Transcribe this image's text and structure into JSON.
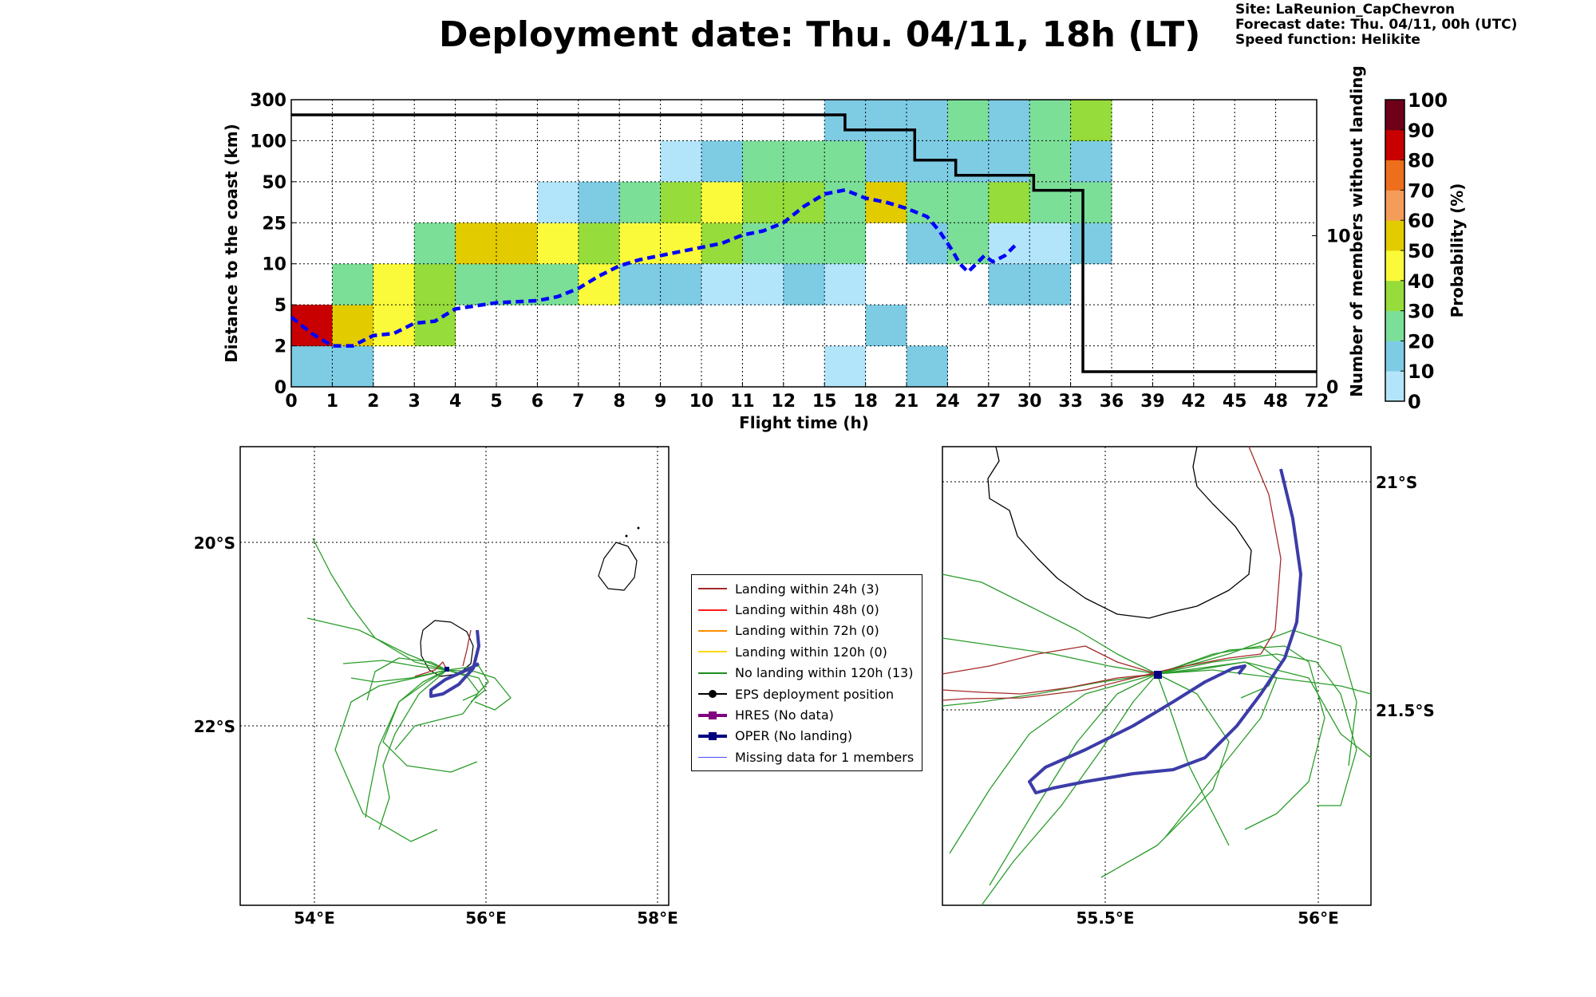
{
  "header": {
    "title": "Deployment date: Thu. 04/11, 18h (LT)",
    "site": "Site: LaReunion_CapChevron",
    "forecast_date": "Forecast date: Thu. 04/11, 00h (UTC)",
    "speed_function": "Speed function: Helikite"
  },
  "chart_data": [
    {
      "type": "heatmap",
      "xlabel": "Flight time (h)",
      "ylabel": "Distance to the coast (km)",
      "y2label": "Number of members without landing",
      "x_ticks": [
        "0",
        "1",
        "2",
        "3",
        "4",
        "5",
        "6",
        "7",
        "8",
        "9",
        "10",
        "11",
        "12",
        "15",
        "18",
        "21",
        "24",
        "27",
        "30",
        "33",
        "36",
        "39",
        "42",
        "45",
        "48",
        "72"
      ],
      "y_ticks": [
        "0",
        "2",
        "5",
        "10",
        "25",
        "50",
        "100",
        "300"
      ],
      "y2_ticks": [
        "0",
        "10"
      ],
      "y2lim": [
        0,
        19
      ],
      "grid": true,
      "colorbar": {
        "label": "Probability (%)",
        "ticks": [
          "0",
          "10",
          "20",
          "30",
          "40",
          "50",
          "60",
          "70",
          "80",
          "90",
          "100"
        ],
        "colors": [
          "#b3e5fa",
          "#7ecbe4",
          "#7bdf98",
          "#96dc3a",
          "#fafa3a",
          "#e2cc00",
          "#f69c5a",
          "#ee6f1b",
          "#c80000",
          "#6e0019"
        ]
      },
      "cells": [
        {
          "c": 0,
          "r": 0,
          "p": 15
        },
        {
          "c": 1,
          "r": 0,
          "p": 15
        },
        {
          "c": 0,
          "r": 1,
          "p": 85
        },
        {
          "c": 1,
          "r": 1,
          "p": 55
        },
        {
          "c": 2,
          "r": 1,
          "p": 45
        },
        {
          "c": 3,
          "r": 1,
          "p": 35
        },
        {
          "c": 1,
          "r": 2,
          "p": 25
        },
        {
          "c": 2,
          "r": 2,
          "p": 45
        },
        {
          "c": 3,
          "r": 2,
          "p": 35
        },
        {
          "c": 4,
          "r": 2,
          "p": 25
        },
        {
          "c": 5,
          "r": 2,
          "p": 25
        },
        {
          "c": 6,
          "r": 2,
          "p": 25
        },
        {
          "c": 7,
          "r": 2,
          "p": 45
        },
        {
          "c": 3,
          "r": 3,
          "p": 25
        },
        {
          "c": 4,
          "r": 3,
          "p": 55
        },
        {
          "c": 5,
          "r": 3,
          "p": 55
        },
        {
          "c": 6,
          "r": 3,
          "p": 45
        },
        {
          "c": 7,
          "r": 3,
          "p": 35
        },
        {
          "c": 8,
          "r": 3,
          "p": 45
        },
        {
          "c": 9,
          "r": 3,
          "p": 45
        },
        {
          "c": 10,
          "r": 3,
          "p": 35
        },
        {
          "c": 11,
          "r": 3,
          "p": 25
        },
        {
          "c": 12,
          "r": 3,
          "p": 25
        },
        {
          "c": 13,
          "r": 3,
          "p": 25
        },
        {
          "c": 15,
          "r": 3,
          "p": 15
        },
        {
          "c": 16,
          "r": 3,
          "p": 25
        },
        {
          "c": 17,
          "r": 3,
          "p": 5
        },
        {
          "c": 18,
          "r": 3,
          "p": 5
        },
        {
          "c": 19,
          "r": 3,
          "p": 15
        },
        {
          "c": 6,
          "r": 4,
          "p": 5
        },
        {
          "c": 7,
          "r": 4,
          "p": 15
        },
        {
          "c": 8,
          "r": 4,
          "p": 25
        },
        {
          "c": 9,
          "r": 4,
          "p": 35
        },
        {
          "c": 10,
          "r": 4,
          "p": 45
        },
        {
          "c": 11,
          "r": 4,
          "p": 35
        },
        {
          "c": 12,
          "r": 4,
          "p": 35
        },
        {
          "c": 13,
          "r": 4,
          "p": 25
        },
        {
          "c": 14,
          "r": 4,
          "p": 55
        },
        {
          "c": 15,
          "r": 4,
          "p": 25
        },
        {
          "c": 16,
          "r": 4,
          "p": 25
        },
        {
          "c": 17,
          "r": 4,
          "p": 35
        },
        {
          "c": 18,
          "r": 4,
          "p": 25
        },
        {
          "c": 19,
          "r": 4,
          "p": 25
        },
        {
          "c": 9,
          "r": 5,
          "p": 5
        },
        {
          "c": 10,
          "r": 5,
          "p": 15
        },
        {
          "c": 11,
          "r": 5,
          "p": 25
        },
        {
          "c": 12,
          "r": 5,
          "p": 25
        },
        {
          "c": 13,
          "r": 5,
          "p": 25
        },
        {
          "c": 14,
          "r": 5,
          "p": 15
        },
        {
          "c": 15,
          "r": 5,
          "p": 15
        },
        {
          "c": 16,
          "r": 5,
          "p": 15
        },
        {
          "c": 17,
          "r": 5,
          "p": 15
        },
        {
          "c": 18,
          "r": 5,
          "p": 25
        },
        {
          "c": 19,
          "r": 5,
          "p": 15
        },
        {
          "c": 13,
          "r": 6,
          "p": 15
        },
        {
          "c": 14,
          "r": 6,
          "p": 15
        },
        {
          "c": 15,
          "r": 6,
          "p": 15
        },
        {
          "c": 16,
          "r": 6,
          "p": 25
        },
        {
          "c": 17,
          "r": 6,
          "p": 15
        },
        {
          "c": 18,
          "r": 6,
          "p": 25
        },
        {
          "c": 19,
          "r": 6,
          "p": 35
        },
        {
          "c": 8,
          "r": 2,
          "p": 15
        },
        {
          "c": 9,
          "r": 2,
          "p": 15
        },
        {
          "c": 10,
          "r": 2,
          "p": 5
        },
        {
          "c": 11,
          "r": 2,
          "p": 5
        },
        {
          "c": 12,
          "r": 2,
          "p": 15
        },
        {
          "c": 13,
          "r": 2,
          "p": 5
        },
        {
          "c": 17,
          "r": 2,
          "p": 15
        },
        {
          "c": 18,
          "r": 2,
          "p": 15
        },
        {
          "c": 2,
          "r": 1,
          "p": 45
        },
        {
          "c": 14,
          "r": 1,
          "p": 15
        },
        {
          "c": 13,
          "r": 0,
          "p": 5
        },
        {
          "c": 15,
          "r": 0,
          "p": 15
        }
      ],
      "landing_members_step": [
        [
          0,
          18
        ],
        [
          13.5,
          18
        ],
        [
          13.5,
          17
        ],
        [
          15.2,
          17
        ],
        [
          15.2,
          15
        ],
        [
          16.2,
          15
        ],
        [
          16.2,
          14
        ],
        [
          18.1,
          14
        ],
        [
          18.1,
          13
        ],
        [
          19.3,
          13
        ],
        [
          19.3,
          1
        ],
        [
          25,
          1
        ]
      ],
      "median_distance_curve": [
        [
          0,
          1.7
        ],
        [
          0.5,
          1.3
        ],
        [
          1,
          1.0
        ],
        [
          1.5,
          1.0
        ],
        [
          2,
          1.25
        ],
        [
          2.5,
          1.3
        ],
        [
          3,
          1.55
        ],
        [
          3.5,
          1.6
        ],
        [
          4,
          1.9
        ],
        [
          5,
          2.05
        ],
        [
          6,
          2.1
        ],
        [
          6.5,
          2.2
        ],
        [
          7,
          2.4
        ],
        [
          7.5,
          2.7
        ],
        [
          8,
          2.95
        ],
        [
          8.5,
          3.1
        ],
        [
          9,
          3.2
        ],
        [
          9.5,
          3.3
        ],
        [
          10,
          3.4
        ],
        [
          10.5,
          3.5
        ],
        [
          11,
          3.7
        ],
        [
          11.5,
          3.8
        ],
        [
          12,
          4.0
        ],
        [
          12.5,
          4.4
        ],
        [
          13,
          4.7
        ],
        [
          13.5,
          4.8
        ],
        [
          14,
          4.6
        ],
        [
          14.5,
          4.5
        ],
        [
          15,
          4.35
        ],
        [
          15.5,
          4.15
        ],
        [
          15.8,
          3.8
        ],
        [
          16.1,
          3.35
        ],
        [
          16.3,
          3.0
        ],
        [
          16.5,
          2.8
        ],
        [
          16.7,
          3.0
        ],
        [
          16.9,
          3.2
        ],
        [
          17.1,
          3.05
        ],
        [
          17.4,
          3.2
        ],
        [
          17.7,
          3.5
        ]
      ]
    }
  ],
  "map_left": {
    "lon_ticks": [
      "54°E",
      "56°E",
      "58°E"
    ],
    "lat_ticks": [
      "20°S",
      "22°S"
    ]
  },
  "map_right": {
    "lon_ticks": [
      "55.5°E",
      "56°E"
    ],
    "lat_ticks": [
      "21°S",
      "21.5°S"
    ]
  },
  "legend": {
    "items": [
      {
        "label": "Landing within 24h (3)",
        "color": "#a52a2a",
        "marker": "none",
        "width": 2
      },
      {
        "label": "Landing within 48h (0)",
        "color": "#ff1a1a",
        "marker": "none",
        "width": 2
      },
      {
        "label": "Landing within 72h (0)",
        "color": "#ff8c00",
        "marker": "none",
        "width": 2
      },
      {
        "label": "Landing within 120h (0)",
        "color": "#ffd700",
        "marker": "none",
        "width": 2
      },
      {
        "label": "No landing within 120h (13)",
        "color": "#1e8c1e",
        "marker": "none",
        "width": 2
      },
      {
        "label": "EPS deployment position",
        "color": "#000000",
        "marker": "circle",
        "width": 2
      },
      {
        "label": "HRES (No data)",
        "color": "#800080",
        "marker": "square",
        "width": 4
      },
      {
        "label": "OPER (No landing)",
        "color": "#000080",
        "marker": "square",
        "width": 4
      },
      {
        "label": "Missing data for 1 members",
        "color": "#4b4bff",
        "marker": "none",
        "width": 1
      }
    ]
  }
}
